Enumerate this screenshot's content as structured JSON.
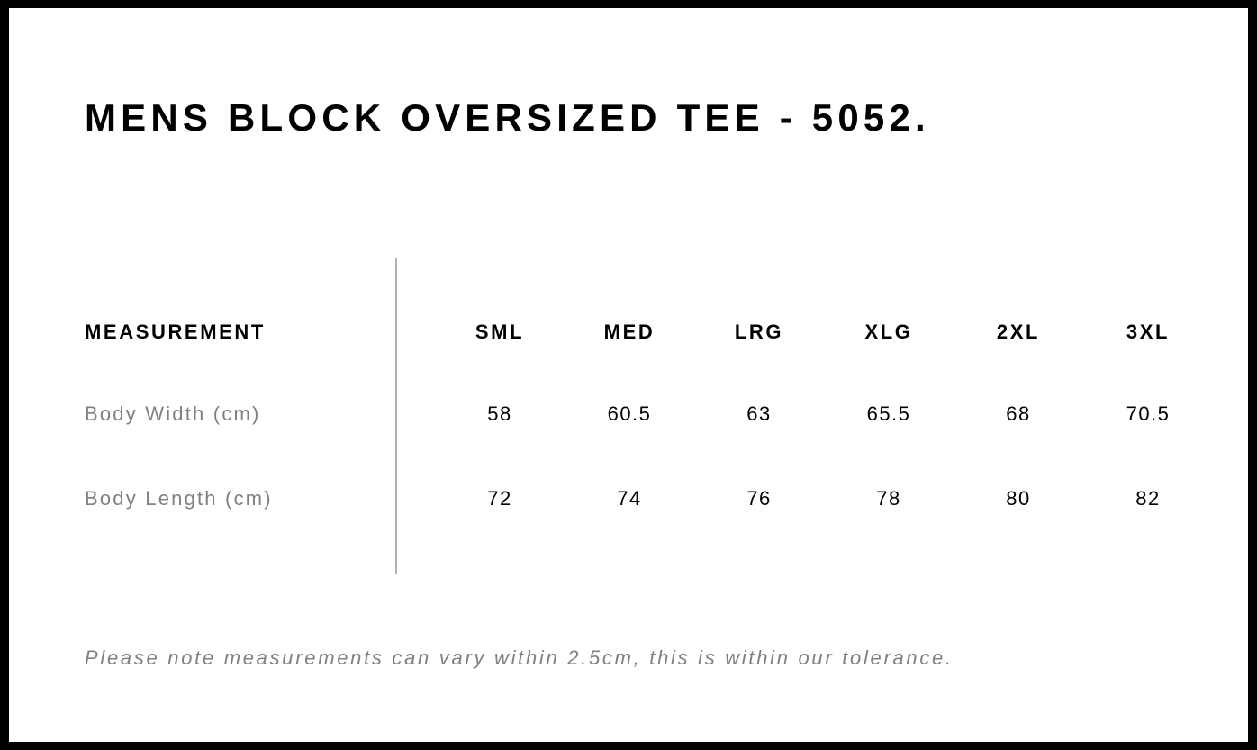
{
  "title": "MENS BLOCK OVERSIZED TEE - 5052.",
  "table": {
    "header_label": "MEASUREMENT",
    "sizes": [
      "SML",
      "MED",
      "LRG",
      "XLG",
      "2XL",
      "3XL"
    ],
    "rows": [
      {
        "label": "Body Width (cm)",
        "values": [
          "58",
          "60.5",
          "63",
          "65.5",
          "68",
          "70.5"
        ]
      },
      {
        "label": "Body Length (cm)",
        "values": [
          "72",
          "74",
          "76",
          "78",
          "80",
          "82"
        ]
      }
    ]
  },
  "note": "Please note measurements can vary within 2.5cm, this is within our tolerance.",
  "colors": {
    "border": "#000000",
    "label_gray": "#808080",
    "divider": "#b0b0b0"
  }
}
